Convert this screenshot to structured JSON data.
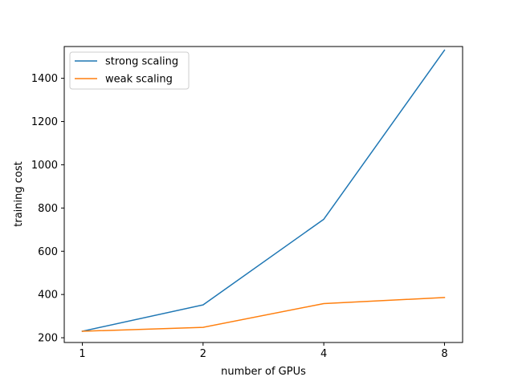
{
  "chart_data": {
    "type": "line",
    "xlabel": "number of GPUs",
    "ylabel": "training cost",
    "x": [
      1,
      2,
      4,
      8
    ],
    "x_scale": "log2",
    "xticks": [
      "1",
      "2",
      "4",
      "8"
    ],
    "yticks": [
      200,
      400,
      600,
      800,
      1000,
      1200,
      1400
    ],
    "ylim": [
      178,
      1547
    ],
    "grid": false,
    "legend_position": "top-left",
    "series": [
      {
        "name": "strong scaling",
        "color": "#1f77b4",
        "values": [
          230,
          352,
          748,
          1530
        ]
      },
      {
        "name": "weak scaling",
        "color": "#ff7f0e",
        "values": [
          230,
          248,
          358,
          386
        ]
      }
    ]
  }
}
